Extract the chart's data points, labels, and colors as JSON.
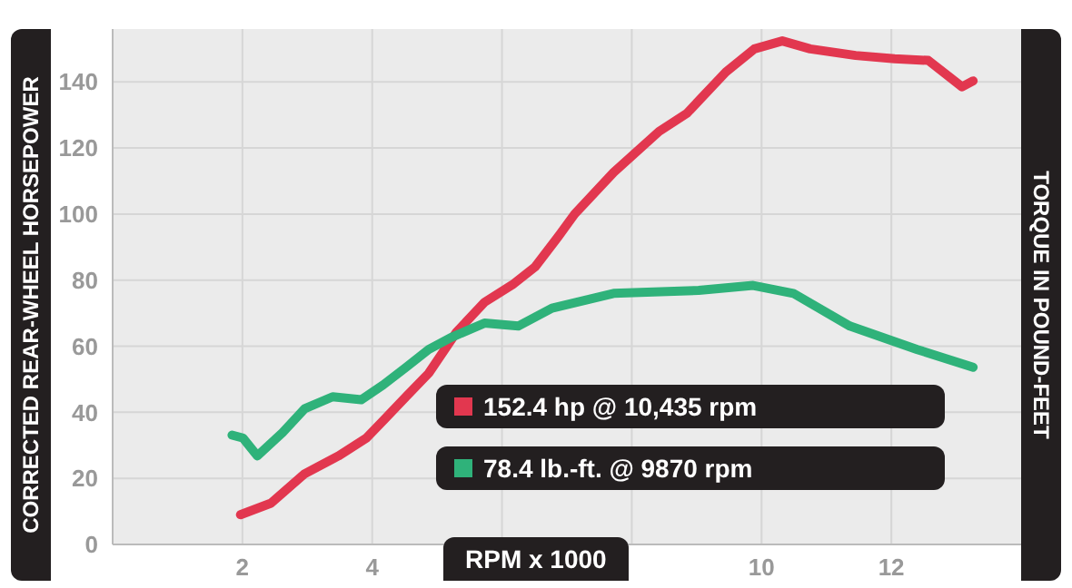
{
  "chart_data": {
    "type": "line",
    "xlabel": "RPM x 1000",
    "ylabel": "CORRECTED REAR-WHEEL HORSEPOWER",
    "y2label": "TORQUE IN POUND-FEET",
    "series": [
      {
        "name": "152.4 hp @ 10,435 rpm",
        "color": "#e2374f",
        "x": [
          1.97,
          2.44,
          2.96,
          3.48,
          3.91,
          4.17,
          4.52,
          4.87,
          5.3,
          5.73,
          6.16,
          6.51,
          6.86,
          7.12,
          7.72,
          8.42,
          8.85,
          9.45,
          9.89,
          10.32,
          10.75,
          11.45,
          12.05,
          12.57,
          13.09,
          13.26
        ],
        "values": [
          9,
          12.5,
          21.4,
          26.8,
          32.2,
          37.5,
          44.7,
          51.8,
          64.3,
          73.3,
          78.6,
          84,
          93,
          100,
          112.6,
          125,
          130.5,
          143,
          150,
          152.4,
          150,
          148,
          147,
          146.5,
          138.5,
          140.3
        ]
      },
      {
        "name": "78.4 lb.-ft. @ 9870 rpm",
        "color": "#2fb27a",
        "x": [
          1.84,
          2.01,
          2.23,
          2.62,
          2.96,
          3.39,
          3.83,
          4.17,
          4.52,
          4.87,
          5.21,
          5.73,
          6.25,
          6.77,
          7.72,
          9.03,
          9.87,
          10.49,
          11.36,
          12.4,
          13.26
        ],
        "values": [
          33.1,
          32.2,
          26.8,
          33.9,
          41.1,
          44.7,
          43.8,
          48.3,
          53.6,
          59,
          62.6,
          67,
          66.1,
          71.5,
          76,
          76.9,
          78.4,
          76,
          66.1,
          59,
          53.6
        ]
      }
    ],
    "xlim": [
      0,
      14
    ],
    "xticks": [
      2,
      4,
      {
        "value": 6,
        "label": null
      },
      {
        "value": 8,
        "label": null
      },
      10,
      12
    ],
    "ylim": [
      0,
      156
    ],
    "yticks": [
      0,
      20,
      40,
      60,
      80,
      100,
      120,
      140
    ],
    "grid": true,
    "legend": "bottom",
    "marker": "none",
    "line_style": "solid"
  }
}
